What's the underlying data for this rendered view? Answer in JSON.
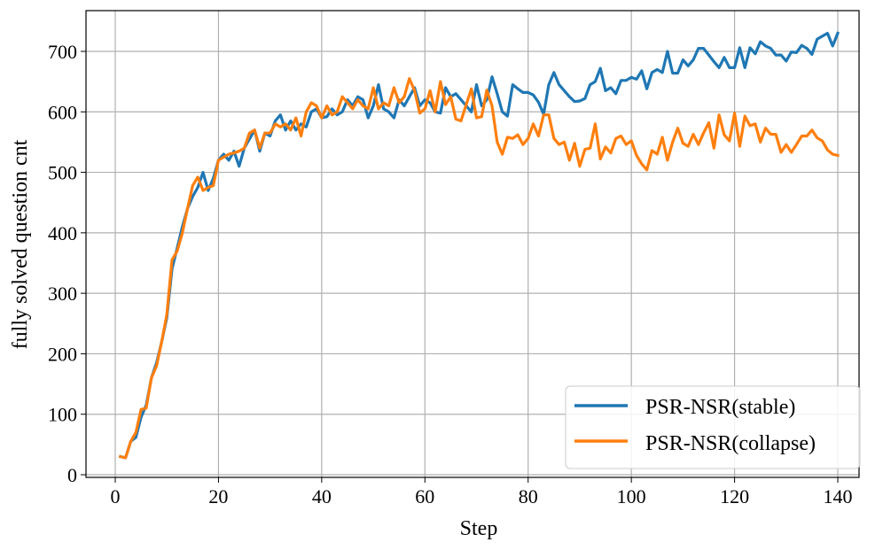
{
  "chart_data": {
    "type": "line",
    "title": "",
    "xlabel": "Step",
    "ylabel": "fully solved question cnt",
    "xlim": [
      -5,
      146
    ],
    "ylim": [
      -5,
      768
    ],
    "xticks": [
      0,
      20,
      40,
      60,
      80,
      100,
      120,
      140
    ],
    "yticks": [
      0,
      100,
      200,
      300,
      400,
      500,
      600,
      700
    ],
    "grid": true,
    "legend_position": "lower right",
    "series": [
      {
        "name": "PSR-NSR(stable)",
        "color": "#1f77b4",
        "x": [
          1,
          2,
          3,
          4,
          5,
          6,
          7,
          8,
          9,
          10,
          11,
          12,
          13,
          14,
          15,
          16,
          17,
          18,
          19,
          20,
          21,
          22,
          23,
          24,
          25,
          26,
          27,
          28,
          29,
          30,
          31,
          32,
          33,
          34,
          35,
          36,
          37,
          38,
          39,
          40,
          41,
          42,
          43,
          44,
          45,
          46,
          47,
          48,
          49,
          50,
          51,
          52,
          53,
          54,
          55,
          56,
          57,
          58,
          59,
          60,
          61,
          62,
          63,
          64,
          65,
          66,
          67,
          68,
          69,
          70,
          71,
          72,
          73,
          74,
          75,
          76,
          77,
          78,
          79,
          80,
          81,
          82,
          83,
          84,
          85,
          86,
          87,
          88,
          89,
          90,
          91,
          92,
          93,
          94,
          95,
          96,
          97,
          98,
          99,
          100,
          101,
          102,
          103,
          104,
          105,
          106,
          107,
          108,
          109,
          110,
          111,
          112,
          113,
          114,
          115,
          116,
          117,
          118,
          119,
          120,
          121,
          122,
          123,
          124,
          125,
          126,
          127,
          128,
          129,
          130,
          131,
          132,
          133,
          134,
          135,
          136,
          137,
          138,
          139,
          140
        ],
        "values": [
          30,
          28,
          55,
          62,
          95,
          115,
          160,
          185,
          220,
          260,
          340,
          375,
          410,
          440,
          460,
          475,
          500,
          470,
          490,
          520,
          530,
          520,
          535,
          510,
          540,
          555,
          570,
          535,
          565,
          560,
          585,
          595,
          570,
          585,
          570,
          580,
          575,
          600,
          605,
          590,
          592,
          605,
          595,
          600,
          620,
          610,
          625,
          620,
          590,
          610,
          645,
          605,
          600,
          590,
          620,
          610,
          625,
          640,
          610,
          620,
          615,
          600,
          598,
          640,
          625,
          630,
          620,
          610,
          600,
          645,
          610,
          620,
          658,
          630,
          600,
          593,
          645,
          638,
          632,
          632,
          628,
          616,
          596,
          645,
          665,
          645,
          635,
          625,
          617,
          618,
          622,
          645,
          650,
          672,
          635,
          640,
          630,
          652,
          652,
          657,
          654,
          668,
          638,
          665,
          670,
          665,
          700,
          664,
          664,
          686,
          676,
          686,
          705,
          705,
          694,
          683,
          673,
          690,
          673,
          673,
          706,
          673,
          706,
          696,
          716,
          709,
          705,
          694,
          694,
          684,
          699,
          698,
          710,
          705,
          695,
          720,
          725,
          730,
          709,
          730
        ]
      },
      {
        "name": "PSR-NSR(collapse)",
        "color": "#ff7f0e",
        "x": [
          1,
          2,
          3,
          4,
          5,
          6,
          7,
          8,
          9,
          10,
          11,
          12,
          13,
          14,
          15,
          16,
          17,
          18,
          19,
          20,
          21,
          22,
          23,
          24,
          25,
          26,
          27,
          28,
          29,
          30,
          31,
          32,
          33,
          34,
          35,
          36,
          37,
          38,
          39,
          40,
          41,
          42,
          43,
          44,
          45,
          46,
          47,
          48,
          49,
          50,
          51,
          52,
          53,
          54,
          55,
          56,
          57,
          58,
          59,
          60,
          61,
          62,
          63,
          64,
          65,
          66,
          67,
          68,
          69,
          70,
          71,
          72,
          73,
          74,
          75,
          76,
          77,
          78,
          79,
          80,
          81,
          82,
          83,
          84,
          85,
          86,
          87,
          88,
          89,
          90,
          91,
          92,
          93,
          94,
          95,
          96,
          97,
          98,
          99,
          100,
          101,
          102,
          103,
          104,
          105,
          106,
          107,
          108,
          109,
          110,
          111,
          112,
          113,
          114,
          115,
          116,
          117,
          118,
          119,
          120,
          121,
          122,
          123,
          124,
          125,
          126,
          127,
          128,
          129,
          130,
          131,
          132,
          133,
          134,
          135,
          136,
          137,
          138,
          139,
          140
        ],
        "values": [
          30,
          28,
          55,
          70,
          108,
          110,
          160,
          180,
          220,
          265,
          355,
          370,
          400,
          440,
          478,
          492,
          470,
          475,
          478,
          520,
          525,
          530,
          532,
          535,
          540,
          565,
          570,
          540,
          565,
          565,
          580,
          575,
          580,
          570,
          590,
          560,
          600,
          615,
          610,
          590,
          610,
          595,
          600,
          625,
          615,
          605,
          620,
          610,
          605,
          640,
          605,
          615,
          610,
          640,
          615,
          625,
          655,
          635,
          598,
          605,
          635,
          600,
          650,
          612,
          625,
          588,
          585,
          612,
          638,
          590,
          592,
          636,
          610,
          550,
          530,
          558,
          556,
          562,
          546,
          556,
          580,
          560,
          595,
          595,
          556,
          546,
          550,
          520,
          548,
          510,
          538,
          540,
          580,
          522,
          542,
          532,
          556,
          560,
          546,
          552,
          528,
          514,
          504,
          536,
          530,
          558,
          520,
          550,
          573,
          548,
          543,
          563,
          546,
          565,
          582,
          540,
          595,
          562,
          552,
          598,
          543,
          593,
          577,
          580,
          550,
          573,
          563,
          563,
          533,
          546,
          533,
          546,
          560,
          560,
          570,
          557,
          552,
          537,
          530,
          528
        ]
      }
    ]
  },
  "legend": {
    "items": [
      {
        "label": "PSR-NSR(stable)",
        "color": "#1f77b4"
      },
      {
        "label": "PSR-NSR(collapse)",
        "color": "#ff7f0e"
      }
    ]
  },
  "axes": {
    "xlabel": "Step",
    "ylabel": "fully solved question cnt"
  }
}
